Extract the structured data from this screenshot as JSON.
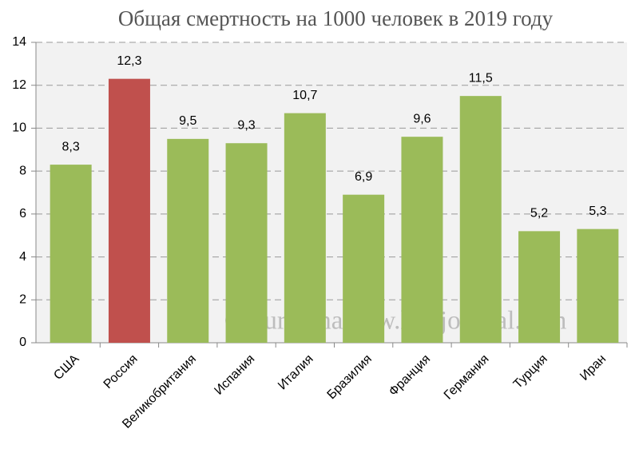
{
  "chart_data": {
    "type": "bar",
    "title": "Общая смертность на 1000 человек в 2019 году",
    "categories": [
      "США",
      "Россия",
      "Великобритания",
      "Испания",
      "Италия",
      "Бразилия",
      "Франция",
      "Германия",
      "Турция",
      "Иран"
    ],
    "values": [
      8.3,
      12.3,
      9.5,
      9.3,
      10.7,
      6.9,
      9.6,
      11.5,
      5.2,
      5.3
    ],
    "value_labels": [
      "8,3",
      "12,3",
      "9,5",
      "9,3",
      "10,7",
      "6,9",
      "9,6",
      "11,5",
      "5,2",
      "5,3"
    ],
    "colors": [
      "#9bbb59",
      "#c0504d",
      "#9bbb59",
      "#9bbb59",
      "#9bbb59",
      "#9bbb59",
      "#9bbb59",
      "#9bbb59",
      "#9bbb59",
      "#9bbb59"
    ],
    "ylim": [
      0,
      14
    ],
    "yticks": [
      0,
      2,
      4,
      6,
      8,
      10,
      12,
      14
    ],
    "grid": true,
    "annotation": "© burckina-new.livejournal.com"
  }
}
